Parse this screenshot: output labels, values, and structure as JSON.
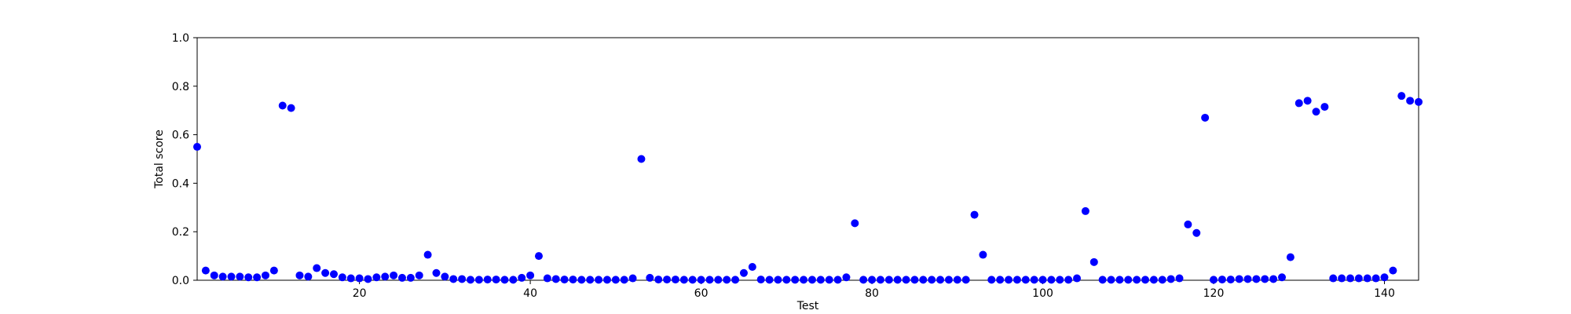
{
  "chart_data": {
    "type": "scatter",
    "title": "",
    "xlabel": "Test",
    "ylabel": "Total score",
    "xlim": [
      1,
      144
    ],
    "ylim": [
      0,
      1.0
    ],
    "xticks": [
      20,
      40,
      60,
      80,
      100,
      120,
      140
    ],
    "xtick_labels": [
      "20",
      "40",
      "60",
      "80",
      "100",
      "120",
      "140"
    ],
    "yticks": [
      0.0,
      0.2,
      0.4,
      0.6,
      0.8,
      1.0
    ],
    "ytick_labels": [
      "0.0",
      "0.2",
      "0.4",
      "0.6",
      "0.8",
      "1.0"
    ],
    "grid": false,
    "marker_color": "#0000ff",
    "series": [
      {
        "x": [
          1,
          2,
          3,
          4,
          5,
          6,
          7,
          8,
          9,
          10,
          11,
          12,
          13,
          14,
          15,
          16,
          17,
          18,
          19,
          20,
          21,
          22,
          23,
          24,
          25,
          26,
          27,
          28,
          29,
          30,
          31,
          32,
          33,
          34,
          35,
          36,
          37,
          38,
          39,
          40,
          41,
          42,
          43,
          44,
          45,
          46,
          47,
          48,
          49,
          50,
          51,
          52,
          53,
          54,
          55,
          56,
          57,
          58,
          59,
          60,
          61,
          62,
          63,
          64,
          65,
          66,
          67,
          68,
          69,
          70,
          71,
          72,
          73,
          74,
          75,
          76,
          77,
          78,
          79,
          80,
          81,
          82,
          83,
          84,
          85,
          86,
          87,
          88,
          89,
          90,
          91,
          92,
          93,
          94,
          95,
          96,
          97,
          98,
          99,
          100,
          101,
          102,
          103,
          104,
          105,
          106,
          107,
          108,
          109,
          110,
          111,
          112,
          113,
          114,
          115,
          116,
          117,
          118,
          119,
          120,
          121,
          122,
          123,
          124,
          125,
          126,
          127,
          128,
          129,
          130,
          131,
          132,
          133,
          134,
          135,
          136,
          137,
          138,
          139,
          140,
          141,
          142,
          143,
          144
        ],
        "y": [
          0.55,
          0.04,
          0.02,
          0.015,
          0.015,
          0.015,
          0.012,
          0.012,
          0.02,
          0.04,
          0.72,
          0.71,
          0.02,
          0.015,
          0.05,
          0.03,
          0.025,
          0.012,
          0.008,
          0.008,
          0.005,
          0.012,
          0.015,
          0.02,
          0.01,
          0.01,
          0.02,
          0.105,
          0.03,
          0.015,
          0.005,
          0.005,
          0.002,
          0.002,
          0.003,
          0.003,
          0.002,
          0.002,
          0.01,
          0.02,
          0.1,
          0.008,
          0.005,
          0.003,
          0.003,
          0.002,
          0.002,
          0.002,
          0.002,
          0.002,
          0.002,
          0.008,
          0.5,
          0.01,
          0.003,
          0.003,
          0.003,
          0.002,
          0.002,
          0.002,
          0.002,
          0.002,
          0.002,
          0.002,
          0.03,
          0.055,
          0.003,
          0.002,
          0.002,
          0.002,
          0.002,
          0.002,
          0.002,
          0.002,
          0.002,
          0.002,
          0.012,
          0.235,
          0.002,
          0.002,
          0.002,
          0.002,
          0.002,
          0.002,
          0.002,
          0.002,
          0.002,
          0.002,
          0.002,
          0.002,
          0.002,
          0.27,
          0.105,
          0.002,
          0.002,
          0.002,
          0.002,
          0.002,
          0.002,
          0.002,
          0.002,
          0.002,
          0.002,
          0.008,
          0.285,
          0.075,
          0.002,
          0.002,
          0.002,
          0.002,
          0.002,
          0.002,
          0.002,
          0.002,
          0.005,
          0.008,
          0.23,
          0.195,
          0.67,
          0.002,
          0.003,
          0.003,
          0.005,
          0.005,
          0.005,
          0.005,
          0.005,
          0.012,
          0.095,
          0.73,
          0.74,
          0.695,
          0.715,
          0.008,
          0.008,
          0.008,
          0.008,
          0.008,
          0.008,
          0.012,
          0.04,
          0.76,
          0.74,
          0.735
        ]
      }
    ]
  }
}
